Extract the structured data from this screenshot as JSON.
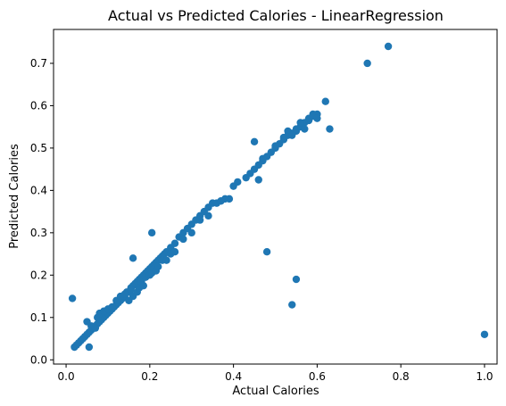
{
  "chart_data": {
    "type": "scatter",
    "title": "Actual vs Predicted Calories - LinearRegression",
    "xlabel": "Actual Calories",
    "ylabel": "Predicted Calories",
    "xlim": [
      -0.03,
      1.03
    ],
    "ylim": [
      -0.01,
      0.78
    ],
    "xticks": [
      0.0,
      0.2,
      0.4,
      0.6,
      0.8,
      1.0
    ],
    "xtick_labels": [
      "0.0",
      "0.2",
      "0.4",
      "0.6",
      "0.8",
      "1.0"
    ],
    "yticks": [
      0.0,
      0.1,
      0.2,
      0.3,
      0.4,
      0.5,
      0.6,
      0.7
    ],
    "ytick_labels": [
      "0.0",
      "0.1",
      "0.2",
      "0.3",
      "0.4",
      "0.5",
      "0.6",
      "0.7"
    ],
    "grid": false,
    "color": "#1f77b4",
    "points": [
      [
        0.02,
        0.03
      ],
      [
        0.025,
        0.035
      ],
      [
        0.03,
        0.04
      ],
      [
        0.035,
        0.045
      ],
      [
        0.04,
        0.05
      ],
      [
        0.045,
        0.055
      ],
      [
        0.05,
        0.06
      ],
      [
        0.055,
        0.065
      ],
      [
        0.06,
        0.07
      ],
      [
        0.065,
        0.075
      ],
      [
        0.07,
        0.08
      ],
      [
        0.075,
        0.085
      ],
      [
        0.08,
        0.09
      ],
      [
        0.085,
        0.095
      ],
      [
        0.09,
        0.1
      ],
      [
        0.095,
        0.105
      ],
      [
        0.1,
        0.11
      ],
      [
        0.105,
        0.115
      ],
      [
        0.11,
        0.12
      ],
      [
        0.115,
        0.125
      ],
      [
        0.12,
        0.13
      ],
      [
        0.125,
        0.135
      ],
      [
        0.13,
        0.14
      ],
      [
        0.135,
        0.145
      ],
      [
        0.14,
        0.15
      ],
      [
        0.145,
        0.16
      ],
      [
        0.15,
        0.16
      ],
      [
        0.155,
        0.17
      ],
      [
        0.16,
        0.175
      ],
      [
        0.165,
        0.18
      ],
      [
        0.17,
        0.185
      ],
      [
        0.175,
        0.19
      ],
      [
        0.18,
        0.195
      ],
      [
        0.185,
        0.2
      ],
      [
        0.19,
        0.205
      ],
      [
        0.195,
        0.21
      ],
      [
        0.2,
        0.215
      ],
      [
        0.205,
        0.22
      ],
      [
        0.21,
        0.225
      ],
      [
        0.215,
        0.23
      ],
      [
        0.22,
        0.235
      ],
      [
        0.225,
        0.24
      ],
      [
        0.23,
        0.245
      ],
      [
        0.235,
        0.25
      ],
      [
        0.24,
        0.255
      ],
      [
        0.25,
        0.265
      ],
      [
        0.26,
        0.275
      ],
      [
        0.27,
        0.29
      ],
      [
        0.28,
        0.3
      ],
      [
        0.29,
        0.31
      ],
      [
        0.3,
        0.32
      ],
      [
        0.31,
        0.33
      ],
      [
        0.32,
        0.34
      ],
      [
        0.33,
        0.35
      ],
      [
        0.34,
        0.36
      ],
      [
        0.35,
        0.37
      ],
      [
        0.36,
        0.37
      ],
      [
        0.38,
        0.38
      ],
      [
        0.4,
        0.41
      ],
      [
        0.41,
        0.42
      ],
      [
        0.43,
        0.43
      ],
      [
        0.44,
        0.44
      ],
      [
        0.45,
        0.45
      ],
      [
        0.46,
        0.46
      ],
      [
        0.47,
        0.47
      ],
      [
        0.48,
        0.48
      ],
      [
        0.49,
        0.49
      ],
      [
        0.5,
        0.5
      ],
      [
        0.51,
        0.51
      ],
      [
        0.52,
        0.52
      ],
      [
        0.53,
        0.53
      ],
      [
        0.54,
        0.535
      ],
      [
        0.55,
        0.54
      ],
      [
        0.56,
        0.55
      ],
      [
        0.57,
        0.56
      ],
      [
        0.58,
        0.57
      ],
      [
        0.59,
        0.58
      ],
      [
        0.6,
        0.58
      ],
      [
        0.62,
        0.61
      ],
      [
        0.63,
        0.545
      ],
      [
        0.72,
        0.7
      ],
      [
        0.77,
        0.74
      ],
      [
        0.05,
        0.09
      ],
      [
        0.06,
        0.08
      ],
      [
        0.07,
        0.075
      ],
      [
        0.075,
        0.1
      ],
      [
        0.08,
        0.11
      ],
      [
        0.09,
        0.115
      ],
      [
        0.1,
        0.12
      ],
      [
        0.11,
        0.125
      ],
      [
        0.12,
        0.14
      ],
      [
        0.13,
        0.15
      ],
      [
        0.14,
        0.155
      ],
      [
        0.15,
        0.14
      ],
      [
        0.155,
        0.165
      ],
      [
        0.16,
        0.15
      ],
      [
        0.17,
        0.16
      ],
      [
        0.175,
        0.17
      ],
      [
        0.18,
        0.185
      ],
      [
        0.185,
        0.175
      ],
      [
        0.19,
        0.195
      ],
      [
        0.2,
        0.2
      ],
      [
        0.205,
        0.205
      ],
      [
        0.21,
        0.215
      ],
      [
        0.215,
        0.21
      ],
      [
        0.22,
        0.22
      ],
      [
        0.23,
        0.235
      ],
      [
        0.24,
        0.235
      ],
      [
        0.25,
        0.25
      ],
      [
        0.26,
        0.255
      ],
      [
        0.28,
        0.285
      ],
      [
        0.3,
        0.3
      ],
      [
        0.32,
        0.33
      ],
      [
        0.34,
        0.34
      ],
      [
        0.37,
        0.375
      ],
      [
        0.39,
        0.38
      ],
      [
        0.47,
        0.475
      ],
      [
        0.5,
        0.505
      ],
      [
        0.52,
        0.525
      ],
      [
        0.53,
        0.54
      ],
      [
        0.54,
        0.53
      ],
      [
        0.55,
        0.545
      ],
      [
        0.56,
        0.56
      ],
      [
        0.57,
        0.545
      ],
      [
        0.58,
        0.565
      ],
      [
        0.59,
        0.575
      ],
      [
        0.6,
        0.57
      ],
      [
        0.015,
        0.145
      ],
      [
        0.055,
        0.03
      ],
      [
        0.16,
        0.24
      ],
      [
        0.205,
        0.3
      ],
      [
        0.45,
        0.515
      ],
      [
        0.46,
        0.425
      ],
      [
        0.48,
        0.255
      ],
      [
        0.54,
        0.13
      ],
      [
        0.55,
        0.19
      ],
      [
        1.0,
        0.06
      ]
    ]
  }
}
